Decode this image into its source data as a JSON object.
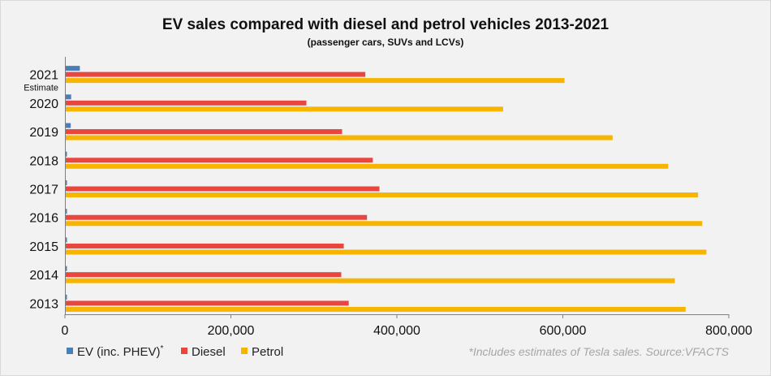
{
  "chart_data": {
    "type": "bar",
    "orientation": "horizontal",
    "title": "EV sales compared with diesel and petrol vehicles 2013-2021",
    "subtitle": "(passenger cars, SUVs and LCVs)",
    "categories": [
      "2021",
      "2020",
      "2019",
      "2018",
      "2017",
      "2016",
      "2015",
      "2014",
      "2013"
    ],
    "category_notes": {
      "2021": "Estimate"
    },
    "series": [
      {
        "name": "EV (inc. PHEV)",
        "name_suffix": "*",
        "color": "#4a7ebb",
        "values": [
          18000,
          7500,
          7000,
          2200,
          2300,
          1400,
          1900,
          1700,
          1000
        ]
      },
      {
        "name": "Diesel",
        "color": "#e8463f",
        "values": [
          362000,
          291000,
          334000,
          371000,
          379000,
          364000,
          336000,
          333000,
          342000
        ]
      },
      {
        "name": "Petrol",
        "color": "#f7b500",
        "values": [
          602000,
          528000,
          660000,
          727000,
          763000,
          768000,
          773000,
          735000,
          748000
        ]
      }
    ],
    "xlim": [
      0,
      800000
    ],
    "xticks": [
      0,
      200000,
      400000,
      600000,
      800000
    ],
    "xtick_labels": [
      "0",
      "200,000",
      "400,000",
      "600,000",
      "800,000"
    ],
    "grid": false,
    "legend_position": "bottom-left",
    "footnote": "*Includes estimates of Tesla sales. Source:VFACTS"
  }
}
